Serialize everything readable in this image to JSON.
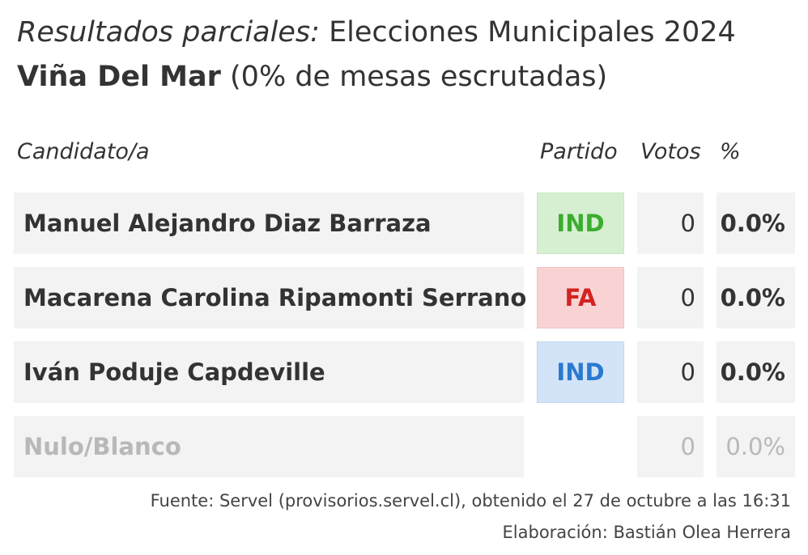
{
  "title": {
    "prefix": "Resultados parciales:",
    "election": "Elecciones Municipales 2024",
    "commune": "Viña Del Mar",
    "progress": "(0% de mesas escrutadas)"
  },
  "headers": {
    "candidate": "Candidato/a",
    "party": "Partido",
    "votes": "Votos",
    "pct": "%"
  },
  "rows": [
    {
      "name": "Manuel Alejandro Diaz Barraza",
      "party": "IND",
      "party_color": "#3aad2e",
      "votes": "0",
      "pct": "0.0%"
    },
    {
      "name": "Macarena Carolina Ripamonti Serrano",
      "party": "FA",
      "party_color": "#d32322",
      "votes": "0",
      "pct": "0.0%"
    },
    {
      "name": "Iván Poduje Capdeville",
      "party": "IND",
      "party_color": "#2a7ad0",
      "votes": "0",
      "pct": "0.0%"
    },
    {
      "name": "Nulo/Blanco",
      "party": "",
      "votes": "0",
      "pct": "0.0%"
    }
  ],
  "footer": {
    "source": "Fuente: Servel (provisorios.servel.cl), obtenido el 27 de octubre a las 16:31",
    "credit": "Elaboración: Bastián Olea Herrera"
  }
}
